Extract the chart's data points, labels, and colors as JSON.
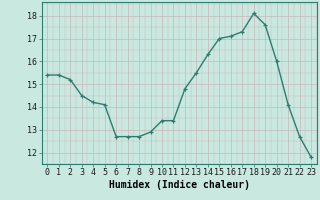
{
  "x": [
    0,
    1,
    2,
    3,
    4,
    5,
    6,
    7,
    8,
    9,
    10,
    11,
    12,
    13,
    14,
    15,
    16,
    17,
    18,
    19,
    20,
    21,
    22,
    23
  ],
  "y": [
    15.4,
    15.4,
    15.2,
    14.5,
    14.2,
    14.1,
    12.7,
    12.7,
    12.7,
    12.9,
    13.4,
    13.4,
    14.8,
    15.5,
    16.3,
    17.0,
    17.1,
    17.3,
    18.1,
    17.6,
    16.0,
    14.1,
    12.7,
    11.8
  ],
  "line_color": "#2d7d6e",
  "marker": "+",
  "marker_size": 3,
  "linewidth": 1.0,
  "bg_color": "#c8e8e0",
  "grid_color": "#c8b8b8",
  "xlabel": "Humidex (Indice chaleur)",
  "xlabel_fontsize": 7,
  "tick_fontsize": 6,
  "ylim": [
    11.5,
    18.6
  ],
  "yticks": [
    12,
    13,
    14,
    15,
    16,
    17,
    18
  ],
  "xlim": [
    -0.5,
    23.5
  ]
}
